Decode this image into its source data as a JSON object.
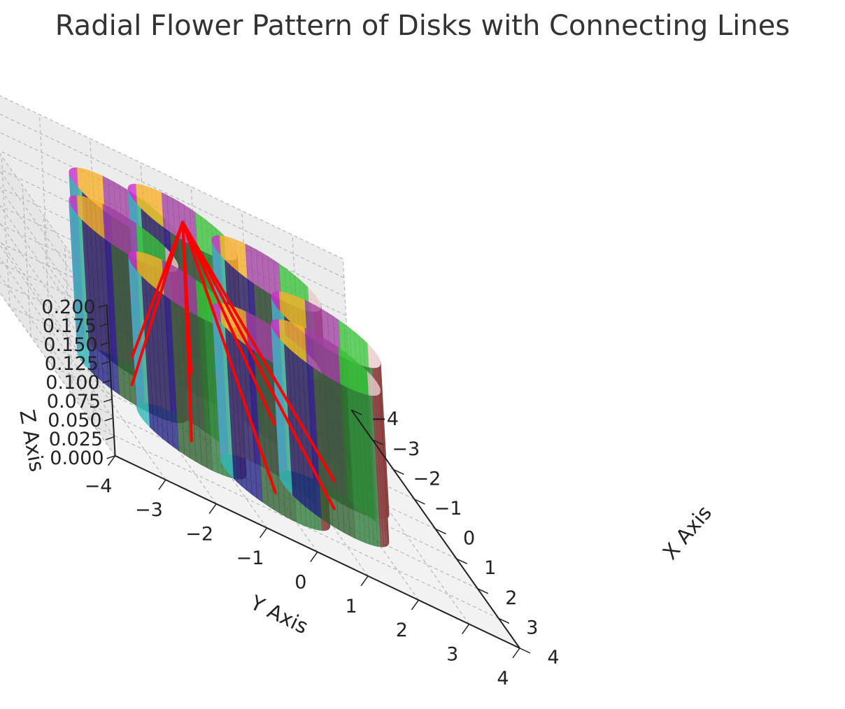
{
  "chart_data": {
    "type": "3d-cylinders",
    "title": "Radial Flower Pattern of Disks with Connecting Lines",
    "xlabel": "X Axis",
    "ylabel": "Y Axis",
    "zlabel": "Z Axis",
    "xlim": [
      -4,
      4
    ],
    "ylim": [
      -4,
      4
    ],
    "zlim": [
      0,
      0.2
    ],
    "x_ticks": [
      "−4",
      "−3",
      "−2",
      "−1",
      "0",
      "1",
      "2",
      "3",
      "4"
    ],
    "y_ticks": [
      "−4",
      "−3",
      "−2",
      "−1",
      "0",
      "1",
      "2",
      "3",
      "4"
    ],
    "z_ticks": [
      "0.000",
      "0.025",
      "0.050",
      "0.075",
      "0.100",
      "0.125",
      "0.150",
      "0.175",
      "0.200"
    ],
    "grid": true,
    "center": {
      "x": -2,
      "y": 0,
      "z": 0.2
    },
    "disks": [
      {
        "x": 2.0,
        "y": 0.0
      },
      {
        "x": 1.41,
        "y": 1.41
      },
      {
        "x": 0.0,
        "y": 2.0
      },
      {
        "x": -1.41,
        "y": 1.41
      },
      {
        "x": -2.0,
        "y": 0.0
      },
      {
        "x": -1.41,
        "y": -1.41
      },
      {
        "x": 0.0,
        "y": -2.0
      },
      {
        "x": 1.41,
        "y": -1.41
      }
    ],
    "disk_radius": 1.0,
    "disk_height": 0.2,
    "disk_colors": [
      "#2f7a3a",
      "#7d2b2b",
      "#eacbcb",
      "#3ac23a",
      "#a040a0",
      "#f7b02a",
      "#cc33cc",
      "#33b8b8",
      "#202080",
      "#2e5e30"
    ],
    "line_color": "#ff0000"
  }
}
